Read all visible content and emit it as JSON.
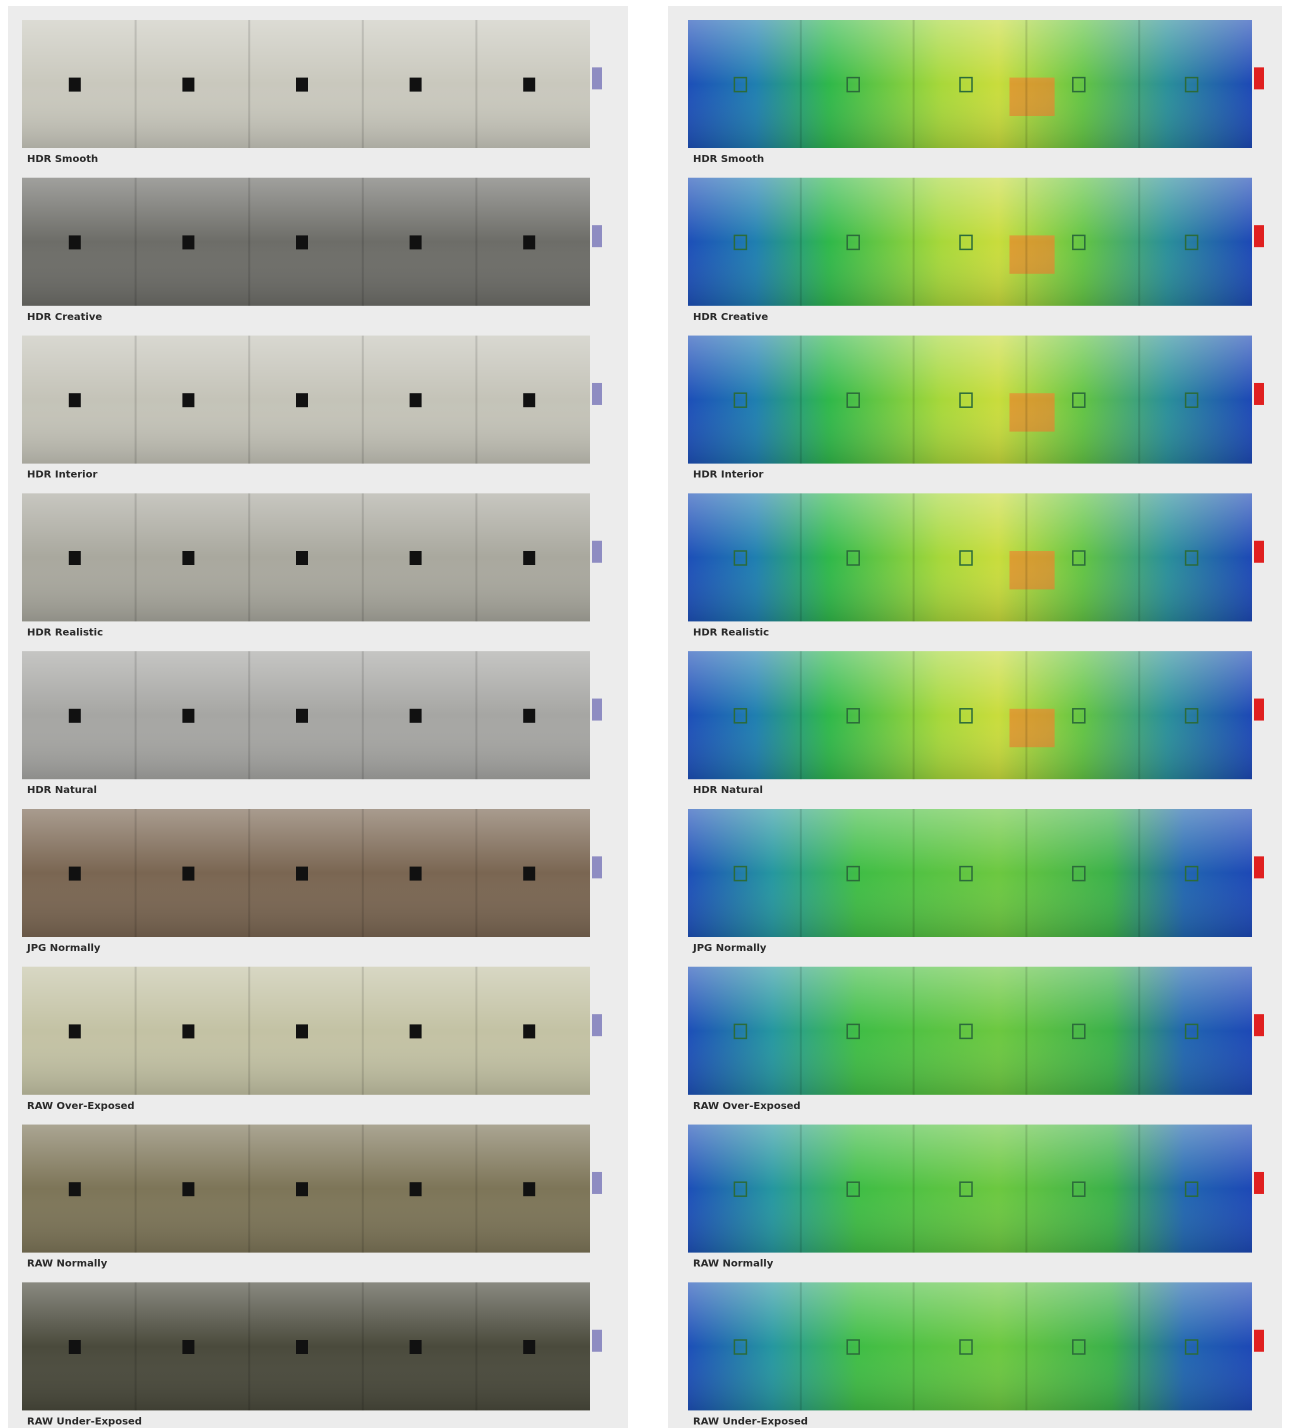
{
  "left": {
    "labels": [
      "HDR Smooth",
      "HDR Creative",
      "HDR Interior",
      "HDR Realistic",
      "HDR Natural",
      "JPG Normally",
      "RAW Over-Exposed",
      "RAW Normally",
      "RAW Under-Exposed"
    ]
  },
  "right": {
    "labels": [
      "HDR Smooth",
      "HDR Creative",
      "HDR Interior",
      "HDR Realistic",
      "HDR Natural",
      "JPG Normally",
      "RAW Over-Exposed",
      "RAW Normally",
      "RAW Under-Exposed"
    ]
  }
}
